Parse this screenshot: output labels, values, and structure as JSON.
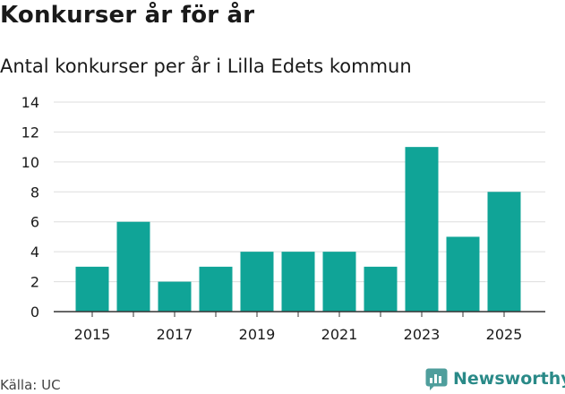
{
  "header": {
    "title": "Konkurser år för år",
    "subtitle": "Antal konkurser per år i Lilla Edets kommun"
  },
  "footer": {
    "source": "Källa: UC",
    "brand": "Newsworthy"
  },
  "colors": {
    "bar": "#10a497",
    "grid": "#dddddd",
    "axis": "#333333",
    "brand": "#2a8a88"
  },
  "chart_data": {
    "type": "bar",
    "title": "Konkurser år för år",
    "subtitle": "Antal konkurser per år i Lilla Edets kommun",
    "categories": [
      "2015",
      "2016",
      "2017",
      "2018",
      "2019",
      "2020",
      "2021",
      "2022",
      "2023",
      "2024",
      "2025"
    ],
    "values": [
      3,
      6,
      2,
      3,
      4,
      4,
      4,
      3,
      11,
      5,
      8
    ],
    "x_tick_labels": [
      "2015",
      "2017",
      "2019",
      "2021",
      "2023",
      "2025"
    ],
    "y_ticks": [
      0,
      2,
      4,
      6,
      8,
      10,
      12,
      14
    ],
    "ylim": [
      0,
      14
    ],
    "xlabel": "",
    "ylabel": "",
    "grid": true,
    "legend": "none"
  }
}
